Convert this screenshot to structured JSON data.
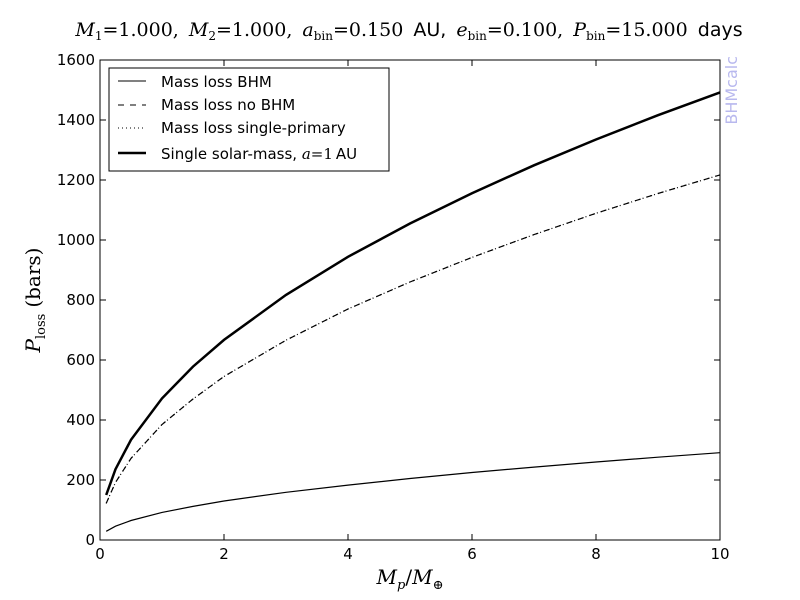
{
  "chart_data": {
    "type": "line",
    "title": {
      "m1_sym": "M",
      "m1_sub": "1",
      "m1_val": "=1.000,",
      "m2_sym": "M",
      "m2_sub": "2",
      "m2_val": "=1.000,",
      "a_sym": "a",
      "a_sub": "bin",
      "a_val": "=0.150",
      "a_unit": "AU,",
      "e_sym": "e",
      "e_sub": "bin",
      "e_val": "=0.100,",
      "p_sym": "P",
      "p_sub": "bin",
      "p_val": "=15.000",
      "p_unit": "days"
    },
    "xlabel": {
      "sym": "M",
      "sub": "p",
      "slash": "/",
      "sym2": "M",
      "sub2": "⊕"
    },
    "ylabel": {
      "sym": "P",
      "sub": "loss",
      "unit": "(bars)"
    },
    "xlim": [
      0,
      10
    ],
    "ylim": [
      0,
      1600
    ],
    "xticks": [
      0,
      2,
      4,
      6,
      8,
      10
    ],
    "yticks": [
      0,
      200,
      400,
      600,
      800,
      1000,
      1200,
      1400,
      1600
    ],
    "grid": false,
    "legend_position": "top-left",
    "legend": [
      {
        "text": "Mass loss BHM",
        "style": "solid",
        "width": "thin"
      },
      {
        "text": "Mass loss no BHM",
        "style": "dashed",
        "width": "thin"
      },
      {
        "text": "Mass loss single-primary",
        "style": "dotted",
        "width": "thin"
      },
      {
        "text": "Single solar-mass, ",
        "math": "a",
        "math_val": "=1",
        "unit": "AU",
        "style": "solid",
        "width": "thick"
      }
    ],
    "watermark": "BHMcalc",
    "series": [
      {
        "name": "Mass loss BHM",
        "style": "solid",
        "width": "thin",
        "x": [
          0.1,
          0.25,
          0.5,
          1,
          1.5,
          2,
          3,
          4,
          5,
          6,
          7,
          8,
          9,
          10
        ],
        "y": [
          29,
          46,
          65,
          92,
          112,
          130,
          159,
          183,
          205,
          225,
          243,
          260,
          276,
          291
        ]
      },
      {
        "name": "Mass loss no BHM",
        "style": "dashed",
        "width": "thin",
        "x": [
          0.1,
          0.25,
          0.5,
          1,
          1.5,
          2,
          3,
          4,
          5,
          6,
          7,
          8,
          9,
          10
        ],
        "y": [
          122,
          192,
          272,
          385,
          470,
          545,
          666,
          770,
          860,
          942,
          1018,
          1089,
          1155,
          1217
        ]
      },
      {
        "name": "Mass loss single-primary",
        "style": "dotted",
        "width": "thin",
        "x": [
          0.1,
          0.25,
          0.5,
          1,
          1.5,
          2,
          3,
          4,
          5,
          6,
          7,
          8,
          9,
          10
        ],
        "y": [
          122,
          192,
          272,
          385,
          470,
          545,
          666,
          770,
          860,
          942,
          1018,
          1089,
          1155,
          1217
        ]
      },
      {
        "name": "Single solar-mass, a=1 AU",
        "style": "solid",
        "width": "thick",
        "x": [
          0.1,
          0.25,
          0.5,
          1,
          1.5,
          2,
          3,
          4,
          5,
          6,
          7,
          8,
          9,
          10
        ],
        "y": [
          150,
          236,
          334,
          472,
          578,
          667,
          817,
          944,
          1055,
          1156,
          1249,
          1335,
          1416,
          1492
        ]
      }
    ]
  }
}
